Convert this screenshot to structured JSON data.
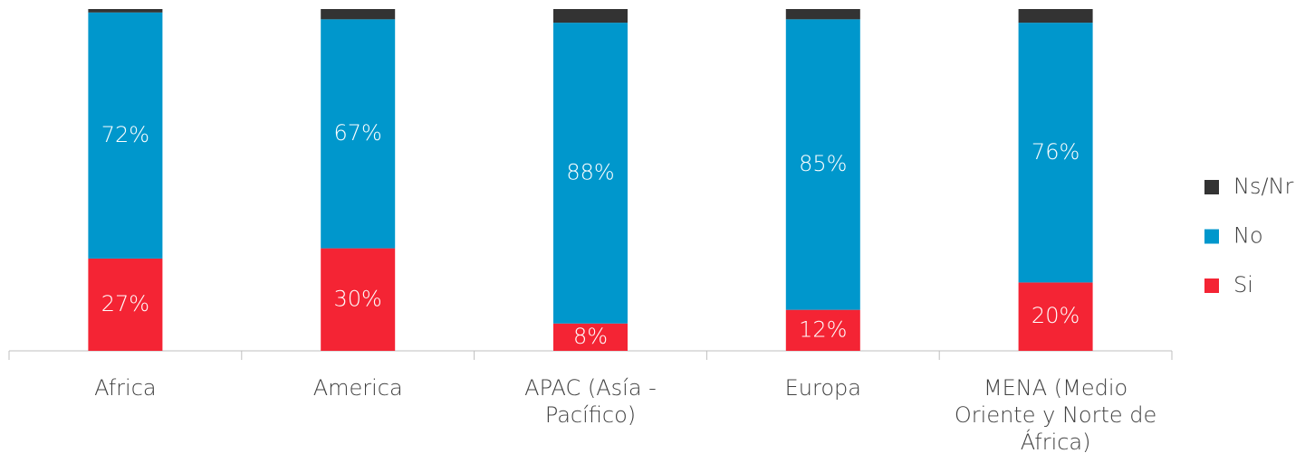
{
  "chart_data": {
    "type": "stacked_bar",
    "categories": [
      "Africa",
      "America",
      "APAC (Asía - Pacífico)",
      "Europa",
      "MENA (Medio Oriente y Norte de África)"
    ],
    "series": [
      {
        "name": "Si",
        "color": "#f42434",
        "values": [
          27,
          30,
          8,
          12,
          20
        ],
        "value_labels": [
          "27%",
          "30%",
          "8%",
          "12%",
          "20%"
        ]
      },
      {
        "name": "No",
        "color": "#0097cc",
        "values": [
          72,
          67,
          88,
          85,
          76
        ],
        "value_labels": [
          "72%",
          "67%",
          "88%",
          "85%",
          "76%"
        ]
      },
      {
        "name": "Ns/Nr",
        "color": "#333333",
        "values": [
          1,
          3,
          4,
          3,
          4
        ]
      }
    ],
    "ylim": [
      0,
      100
    ],
    "legend": "right"
  }
}
